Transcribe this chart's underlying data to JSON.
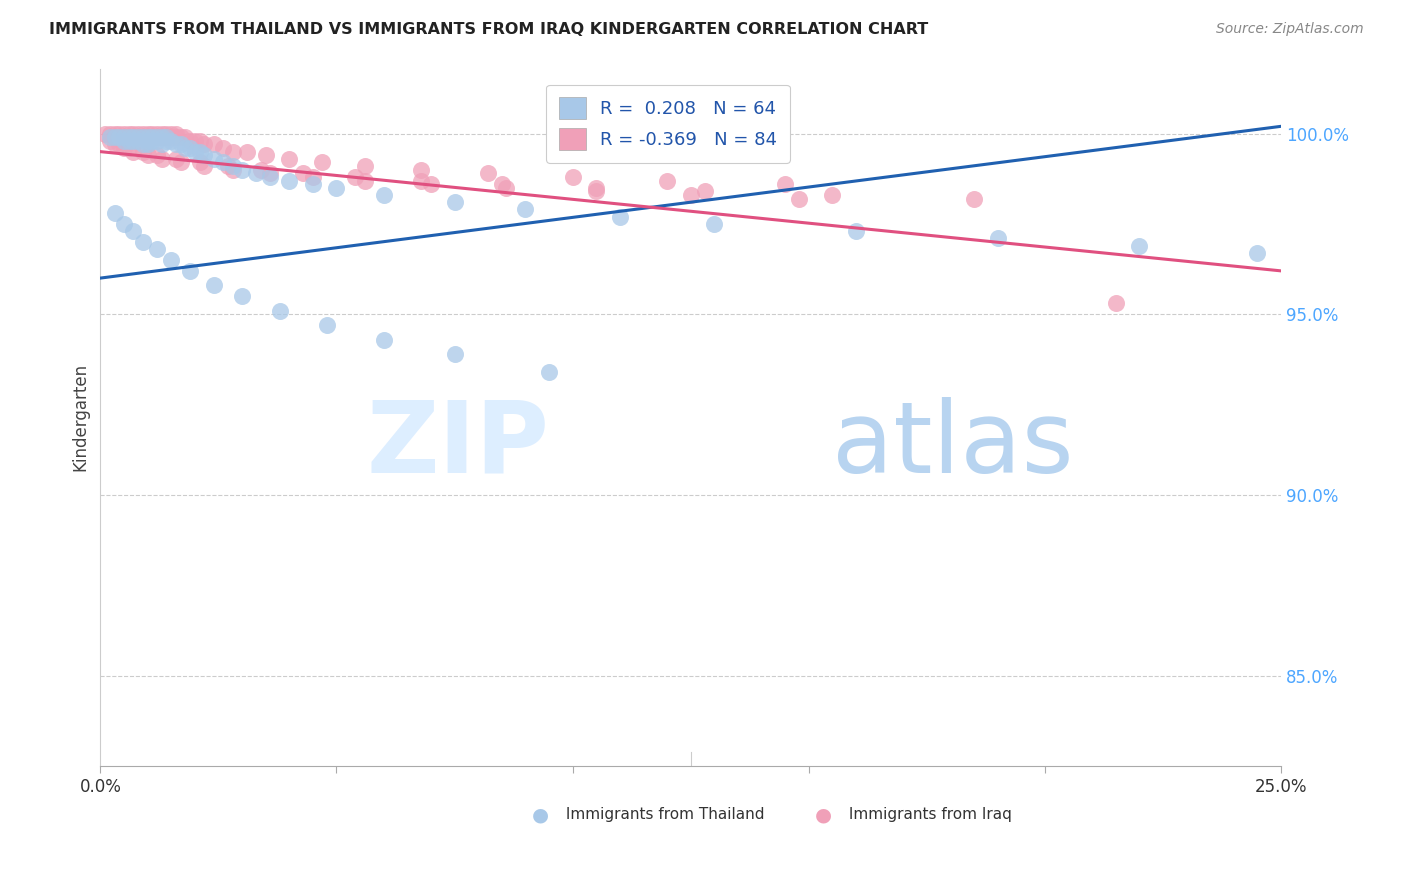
{
  "title": "IMMIGRANTS FROM THAILAND VS IMMIGRANTS FROM IRAQ KINDERGARTEN CORRELATION CHART",
  "source": "Source: ZipAtlas.com",
  "ylabel": "Kindergarten",
  "ytick_labels": [
    "85.0%",
    "90.0%",
    "95.0%",
    "100.0%"
  ],
  "ytick_values": [
    0.85,
    0.9,
    0.95,
    1.0
  ],
  "xlim": [
    0.0,
    0.25
  ],
  "ylim": [
    0.825,
    1.018
  ],
  "legend_r_thailand": "0.208",
  "legend_n_thailand": "64",
  "legend_r_iraq": "-0.369",
  "legend_n_iraq": "84",
  "color_thailand": "#a8c8e8",
  "color_iraq": "#f0a0b8",
  "color_line_thailand": "#2060b0",
  "color_line_iraq": "#e05080",
  "color_yticks": "#4da6ff",
  "thailand_line_x0": 0.0,
  "thailand_line_y0": 0.96,
  "thailand_line_x1": 0.25,
  "thailand_line_y1": 1.002,
  "iraq_line_x0": 0.0,
  "iraq_line_y0": 0.995,
  "iraq_line_x1": 0.25,
  "iraq_line_y1": 0.962,
  "thailand_x": [
    0.002,
    0.003,
    0.004,
    0.005,
    0.005,
    0.006,
    0.006,
    0.007,
    0.007,
    0.008,
    0.008,
    0.009,
    0.009,
    0.01,
    0.01,
    0.01,
    0.011,
    0.011,
    0.012,
    0.012,
    0.013,
    0.013,
    0.014,
    0.014,
    0.015,
    0.016,
    0.017,
    0.018,
    0.019,
    0.02,
    0.021,
    0.022,
    0.024,
    0.026,
    0.028,
    0.03,
    0.033,
    0.036,
    0.04,
    0.045,
    0.05,
    0.06,
    0.075,
    0.09,
    0.11,
    0.13,
    0.16,
    0.19,
    0.22,
    0.245,
    0.003,
    0.005,
    0.007,
    0.009,
    0.012,
    0.015,
    0.019,
    0.024,
    0.03,
    0.038,
    0.048,
    0.06,
    0.075,
    0.095
  ],
  "thailand_y": [
    0.999,
    0.999,
    0.999,
    0.999,
    0.998,
    0.999,
    0.998,
    0.999,
    0.998,
    0.999,
    0.998,
    0.999,
    0.997,
    0.999,
    0.998,
    0.997,
    0.999,
    0.998,
    0.999,
    0.998,
    0.999,
    0.997,
    0.999,
    0.998,
    0.998,
    0.997,
    0.997,
    0.996,
    0.996,
    0.995,
    0.995,
    0.994,
    0.993,
    0.992,
    0.991,
    0.99,
    0.989,
    0.988,
    0.987,
    0.986,
    0.985,
    0.983,
    0.981,
    0.979,
    0.977,
    0.975,
    0.973,
    0.971,
    0.969,
    0.967,
    0.978,
    0.975,
    0.973,
    0.97,
    0.968,
    0.965,
    0.962,
    0.958,
    0.955,
    0.951,
    0.947,
    0.943,
    0.939,
    0.934
  ],
  "iraq_x": [
    0.001,
    0.002,
    0.003,
    0.003,
    0.004,
    0.004,
    0.005,
    0.005,
    0.006,
    0.006,
    0.007,
    0.007,
    0.008,
    0.008,
    0.009,
    0.009,
    0.01,
    0.01,
    0.01,
    0.011,
    0.011,
    0.012,
    0.012,
    0.013,
    0.013,
    0.014,
    0.014,
    0.015,
    0.015,
    0.016,
    0.016,
    0.017,
    0.018,
    0.019,
    0.02,
    0.021,
    0.022,
    0.024,
    0.026,
    0.028,
    0.031,
    0.035,
    0.04,
    0.047,
    0.056,
    0.068,
    0.082,
    0.1,
    0.12,
    0.145,
    0.003,
    0.005,
    0.007,
    0.01,
    0.013,
    0.017,
    0.022,
    0.028,
    0.036,
    0.045,
    0.056,
    0.07,
    0.086,
    0.105,
    0.125,
    0.148,
    0.002,
    0.004,
    0.006,
    0.009,
    0.012,
    0.016,
    0.021,
    0.027,
    0.034,
    0.043,
    0.054,
    0.068,
    0.085,
    0.105,
    0.128,
    0.155,
    0.185,
    0.215
  ],
  "iraq_y": [
    1.0,
    1.0,
    1.0,
    0.999,
    1.0,
    0.999,
    1.0,
    0.999,
    1.0,
    0.999,
    1.0,
    0.999,
    1.0,
    0.999,
    1.0,
    0.999,
    1.0,
    0.999,
    0.998,
    1.0,
    0.999,
    1.0,
    0.999,
    1.0,
    0.999,
    1.0,
    0.999,
    1.0,
    0.999,
    1.0,
    0.999,
    0.999,
    0.999,
    0.998,
    0.998,
    0.998,
    0.997,
    0.997,
    0.996,
    0.995,
    0.995,
    0.994,
    0.993,
    0.992,
    0.991,
    0.99,
    0.989,
    0.988,
    0.987,
    0.986,
    0.997,
    0.996,
    0.995,
    0.994,
    0.993,
    0.992,
    0.991,
    0.99,
    0.989,
    0.988,
    0.987,
    0.986,
    0.985,
    0.984,
    0.983,
    0.982,
    0.998,
    0.997,
    0.996,
    0.995,
    0.994,
    0.993,
    0.992,
    0.991,
    0.99,
    0.989,
    0.988,
    0.987,
    0.986,
    0.985,
    0.984,
    0.983,
    0.982,
    0.953
  ]
}
